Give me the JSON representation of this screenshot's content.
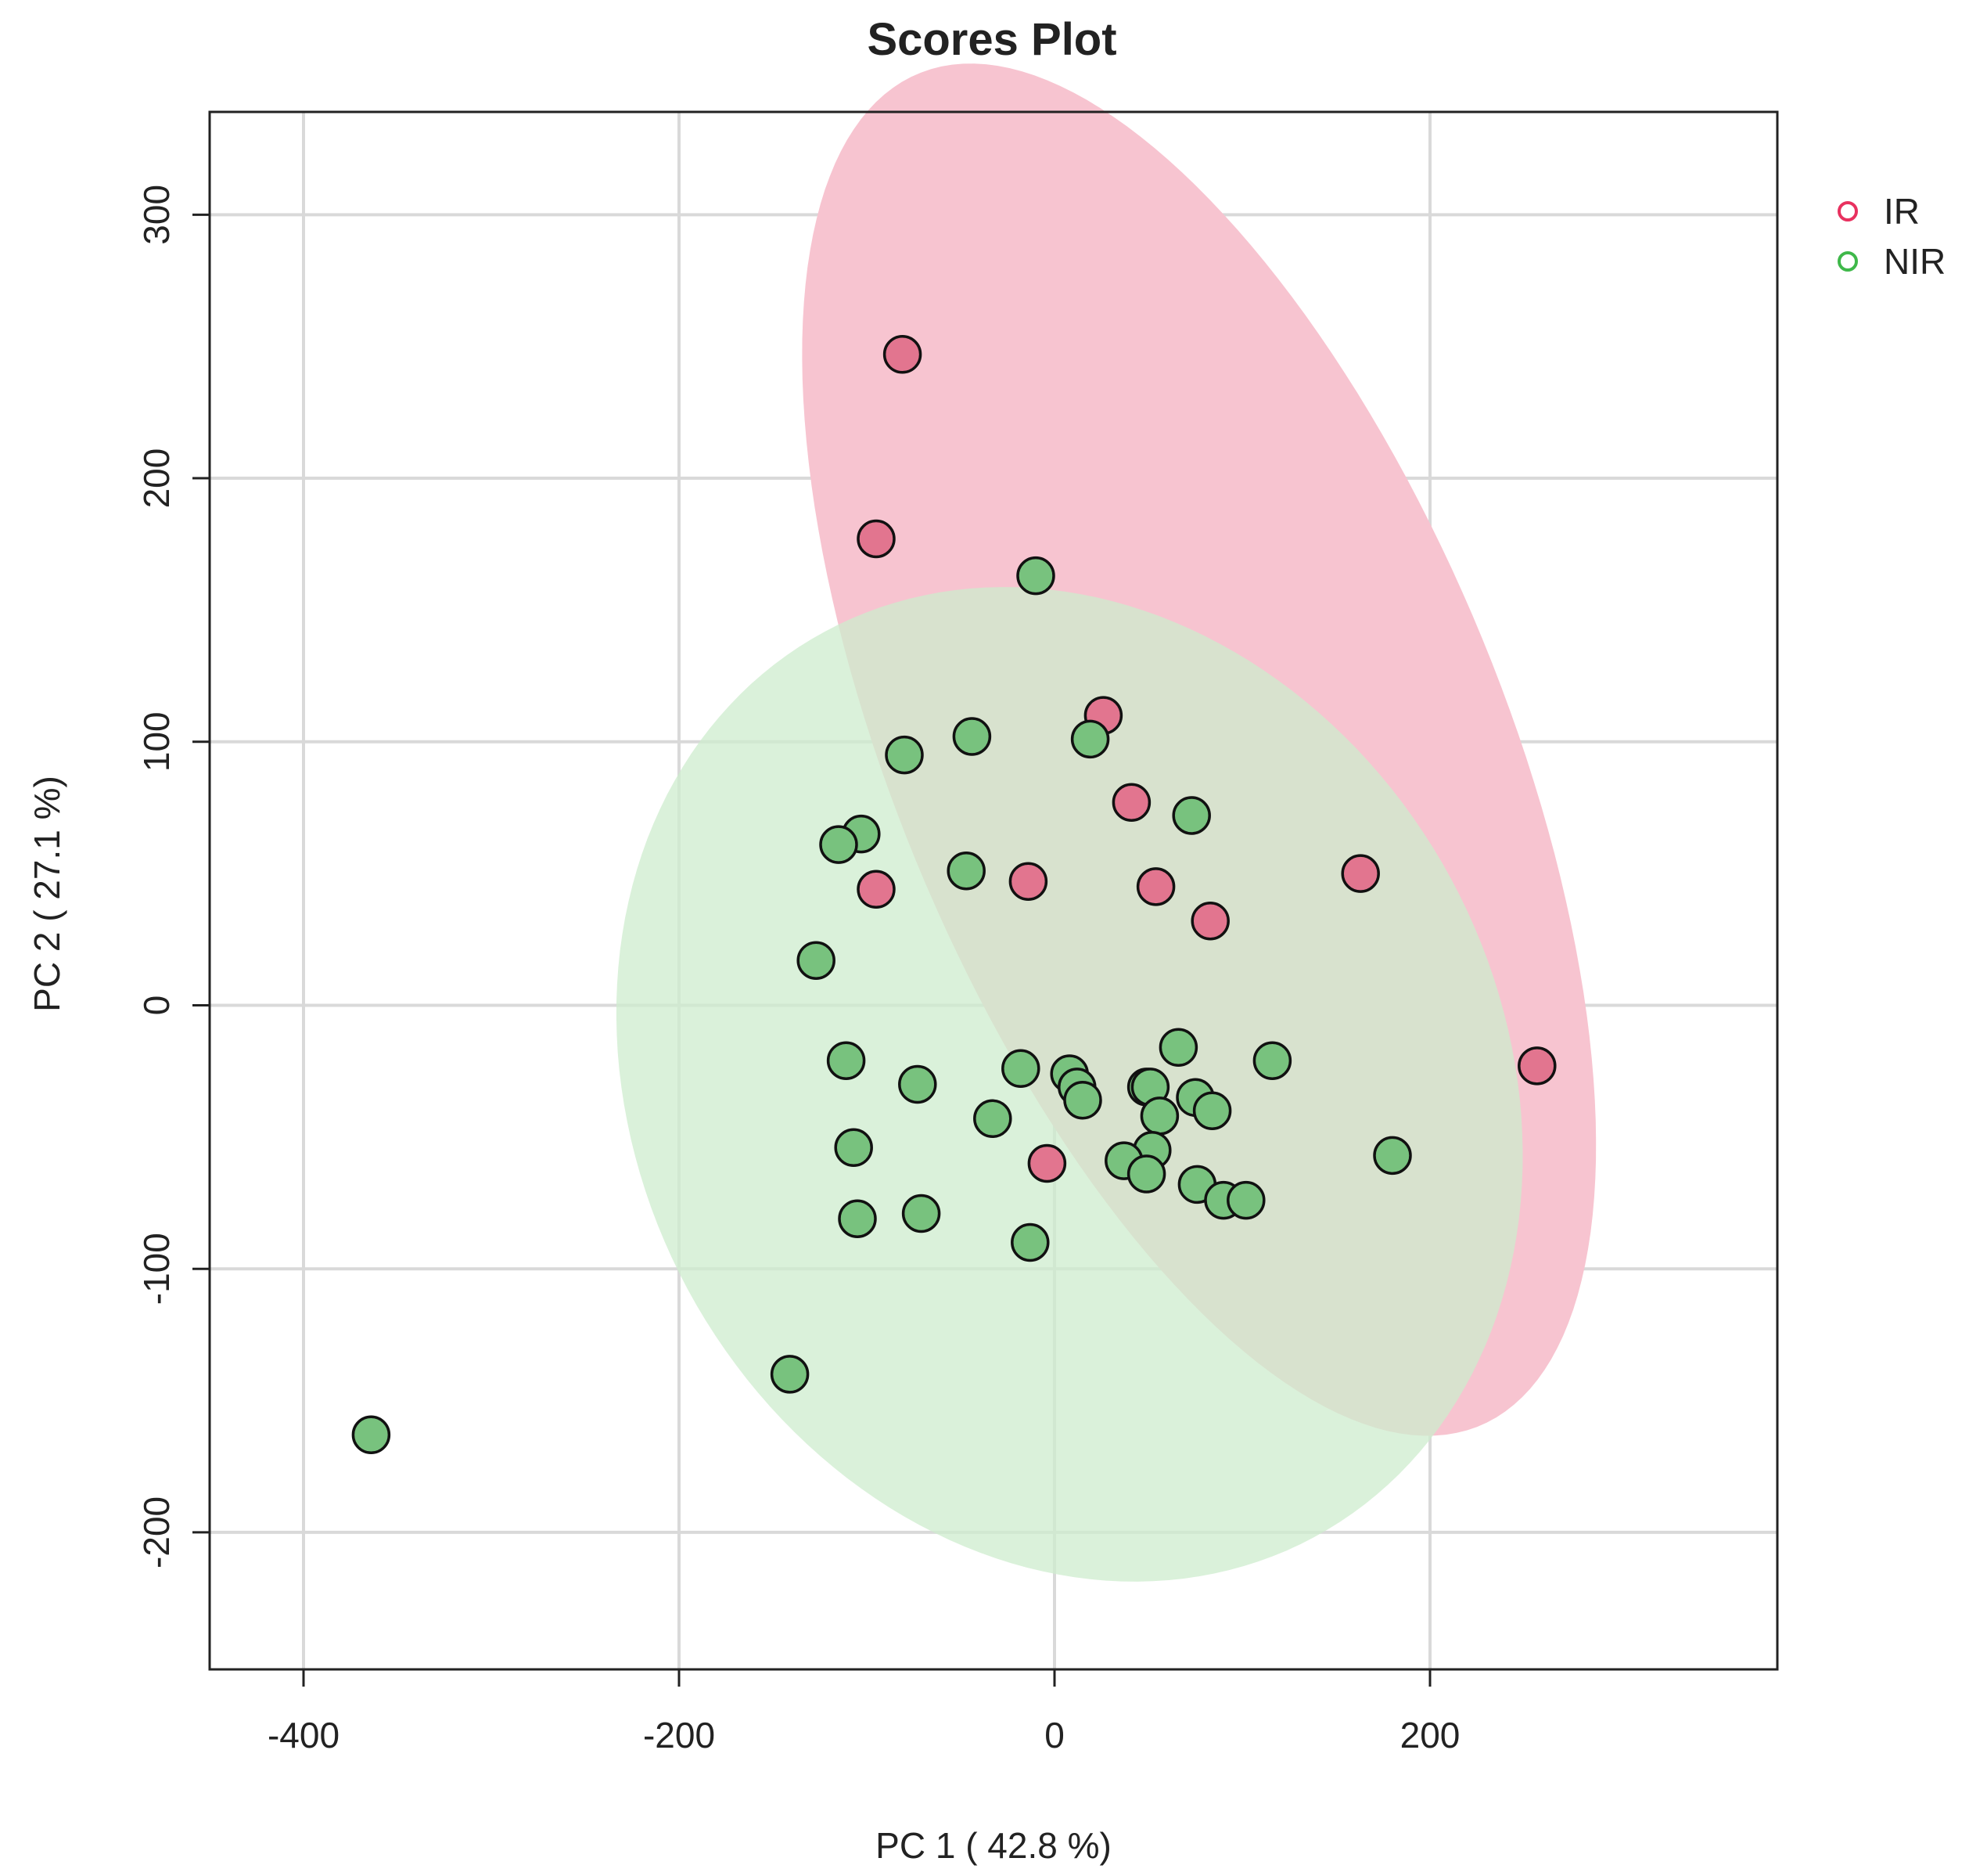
{
  "chart_data": {
    "type": "scatter",
    "title": "Scores Plot",
    "xlabel": "PC 1 ( 42.8 %)",
    "ylabel": "PC 2 ( 27.1 %)",
    "xlim": [
      -450,
      385
    ],
    "ylim": [
      -252,
      339
    ],
    "xticks": [
      -400,
      -200,
      0,
      200
    ],
    "yticks": [
      -200,
      -100,
      0,
      100,
      200,
      300
    ],
    "grid": true,
    "legend_position": "top-right",
    "series": [
      {
        "name": "IR",
        "color": "#e8315f",
        "fill": "#e2758f",
        "ellipse_color": "#f7c4d0",
        "ellipse": {
          "cx": 77,
          "cy": 97,
          "rx": 300,
          "ry": 150,
          "rotation_deg": -55
        },
        "points": [
          [
            -81,
            247
          ],
          [
            -95,
            177
          ],
          [
            26,
            110
          ],
          [
            41,
            77
          ],
          [
            163,
            50
          ],
          [
            -14,
            47
          ],
          [
            54,
            45
          ],
          [
            -95,
            44
          ],
          [
            83,
            32
          ],
          [
            257,
            -23
          ],
          [
            -4,
            -60
          ]
        ]
      },
      {
        "name": "NIR",
        "color": "#3fb84a",
        "fill": "#78c27e",
        "ellipse_color": "#cdeccd",
        "ellipse": {
          "cx": 8,
          "cy": -30,
          "rx": 245,
          "ry": 184,
          "rotation_deg": -15
        },
        "points": [
          [
            -10,
            163
          ],
          [
            -44,
            102
          ],
          [
            19,
            101
          ],
          [
            -80,
            95
          ],
          [
            73,
            72
          ],
          [
            -103,
            65
          ],
          [
            -115,
            61
          ],
          [
            -47,
            51
          ],
          [
            -127,
            17
          ],
          [
            66,
            -16
          ],
          [
            116,
            -21
          ],
          [
            -111,
            -21
          ],
          [
            -18,
            -24
          ],
          [
            8,
            -26
          ],
          [
            -73,
            -30
          ],
          [
            49,
            -31
          ],
          [
            12,
            -31
          ],
          [
            51,
            -31
          ],
          [
            75,
            -35
          ],
          [
            15,
            -36
          ],
          [
            84,
            -40
          ],
          [
            56,
            -42
          ],
          [
            -33,
            -43
          ],
          [
            -107,
            -54
          ],
          [
            52,
            -55
          ],
          [
            180,
            -57
          ],
          [
            37,
            -59
          ],
          [
            49,
            -64
          ],
          [
            76,
            -68
          ],
          [
            90,
            -74
          ],
          [
            102,
            -74
          ],
          [
            -71,
            -79
          ],
          [
            -105,
            -81
          ],
          [
            -13,
            -90
          ],
          [
            -141,
            -140
          ],
          [
            -364,
            -163
          ]
        ]
      }
    ]
  }
}
